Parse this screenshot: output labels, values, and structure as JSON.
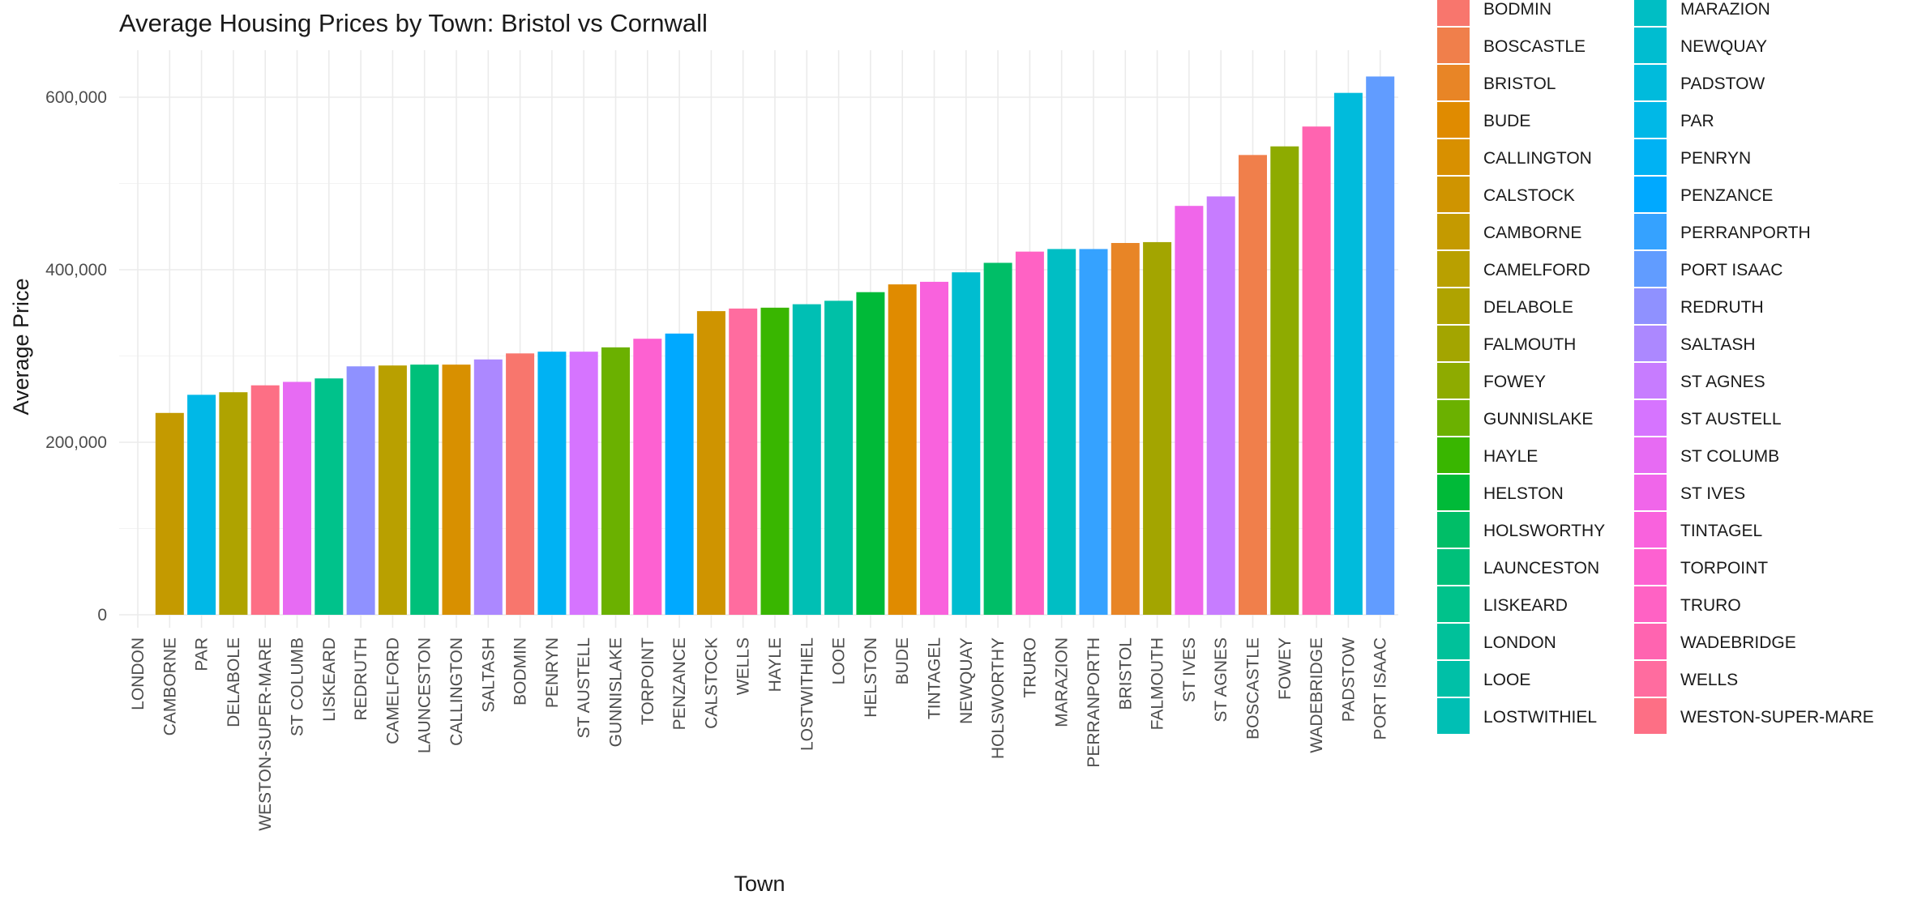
{
  "chart_data": {
    "type": "bar",
    "title": "Average Housing Prices by Town: Bristol vs Cornwall",
    "xlabel": "Town",
    "ylabel": "Average Price",
    "ylim": [
      0,
      650000
    ],
    "y_ticks": [
      0,
      200000,
      400000,
      600000
    ],
    "y_tick_labels": [
      "0",
      "200,000",
      "400,000",
      "600,000"
    ],
    "grid": true,
    "legend_position": "right",
    "categories": [
      "LONDON",
      "CAMBORNE",
      "PAR",
      "DELABOLE",
      "WESTON-SUPER-MARE",
      "ST COLUMB",
      "LISKEARD",
      "REDRUTH",
      "CAMELFORD",
      "LAUNCESTON",
      "CALLINGTON",
      "SALTASH",
      "BODMIN",
      "PENRYN",
      "ST AUSTELL",
      "GUNNISLAKE",
      "TORPOINT",
      "PENZANCE",
      "CALSTOCK",
      "WELLS",
      "HAYLE",
      "LOSTWITHIEL",
      "LOOE",
      "HELSTON",
      "BUDE",
      "TINTAGEL",
      "NEWQUAY",
      "HOLSWORTHY",
      "TRURO",
      "MARAZION",
      "PERRANPORTH",
      "BRISTOL",
      "FALMOUTH",
      "ST IVES",
      "ST AGNES",
      "BOSCASTLE",
      "FOWEY",
      "WADEBRIDGE",
      "PADSTOW",
      "PORT ISAAC"
    ],
    "values": [
      0,
      234000,
      255000,
      258000,
      266000,
      270000,
      274000,
      288000,
      289000,
      290000,
      290000,
      296000,
      303000,
      305000,
      305000,
      310000,
      320000,
      326000,
      352000,
      355000,
      356000,
      360000,
      364000,
      374000,
      383000,
      386000,
      397000,
      408000,
      421000,
      424000,
      424000,
      431000,
      432000,
      474000,
      485000,
      533000,
      543000,
      566000,
      605000,
      624000
    ],
    "legend": {
      "entries": [
        "BODMIN",
        "BOSCASTLE",
        "BRISTOL",
        "BUDE",
        "CALLINGTON",
        "CALSTOCK",
        "CAMBORNE",
        "CAMELFORD",
        "DELABOLE",
        "FALMOUTH",
        "FOWEY",
        "GUNNISLAKE",
        "HAYLE",
        "HELSTON",
        "HOLSWORTHY",
        "LAUNCESTON",
        "LISKEARD",
        "LONDON",
        "LOOE",
        "LOSTWITHIEL",
        "MARAZION",
        "NEWQUAY",
        "PADSTOW",
        "PAR",
        "PENRYN",
        "PENZANCE",
        "PERRANPORTH",
        "PORT ISAAC",
        "REDRUTH",
        "SALTASH",
        "ST AGNES",
        "ST AUSTELL",
        "ST COLUMB",
        "ST IVES",
        "TINTAGEL",
        "TORPOINT",
        "TRURO",
        "WADEBRIDGE",
        "WELLS",
        "WESTON-SUPER-MARE"
      ],
      "colors": [
        "#F8766D",
        "#F07F4B",
        "#E88526",
        "#E08B00",
        "#D89000",
        "#CF9400",
        "#C49A00",
        "#B9A000",
        "#AFA300",
        "#A3A500",
        "#8EAB00",
        "#6BB100",
        "#39B600",
        "#00BA38",
        "#00BE67",
        "#00C07A",
        "#00C28B",
        "#00C19A",
        "#00C0A7",
        "#00BFB4",
        "#00BEC4",
        "#00BDD0",
        "#00BBDC",
        "#00B8E7",
        "#00B2F3",
        "#00A9FF",
        "#35A2FF",
        "#619CFF",
        "#8F91FF",
        "#AC88FF",
        "#C77CFF",
        "#D674FF",
        "#E76BF3",
        "#F066EA",
        "#F962DD",
        "#FD61D1",
        "#FF62C4",
        "#FF64B0",
        "#FF6C9F",
        "#FD6F85"
      ]
    }
  }
}
